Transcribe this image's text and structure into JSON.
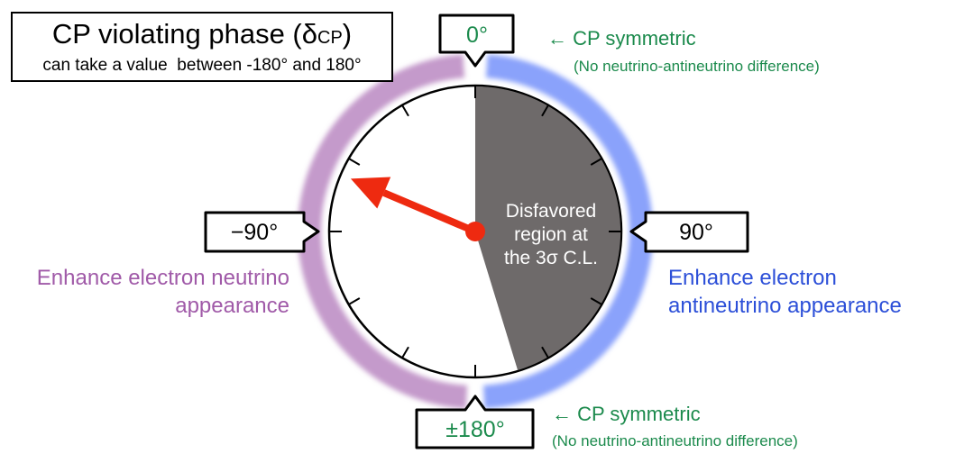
{
  "title": {
    "main_prefix": "CP violating phase (δ",
    "main_subscript": "CP",
    "main_suffix": ")",
    "subtitle": "can take a value  between -180° and 180°"
  },
  "dial": {
    "labels": {
      "top": "0°",
      "right": "90°",
      "bottom": "±180°",
      "left": "−90°"
    },
    "region": {
      "line1": "Disfavored",
      "line2": "region at",
      "line3": "the 3σ C.L."
    },
    "region_range_deg": [
      0,
      163
    ],
    "pointer_angle_deg": -67,
    "tick_step_deg": 30
  },
  "annotations": {
    "top_main": "← CP symmetric",
    "top_sub": "(No neutrino-antineutrino difference)",
    "bottom_main": "← CP symmetric",
    "bottom_sub": "(No neutrino-antineutrino difference)",
    "left_line1": "Enhance electron neutrino",
    "left_line2": "appearance",
    "right_line1": "Enhance electron",
    "right_line2": "antineutrino appearance"
  },
  "colors": {
    "left_arc": "#c49acb",
    "right_arc": "#8aa2fb",
    "region": "#6e6a6a",
    "pointer": "#ee2a10",
    "green_text": "#1b8a4c",
    "purple_text": "#a05aa8",
    "blue_text": "#2c4fd8"
  }
}
